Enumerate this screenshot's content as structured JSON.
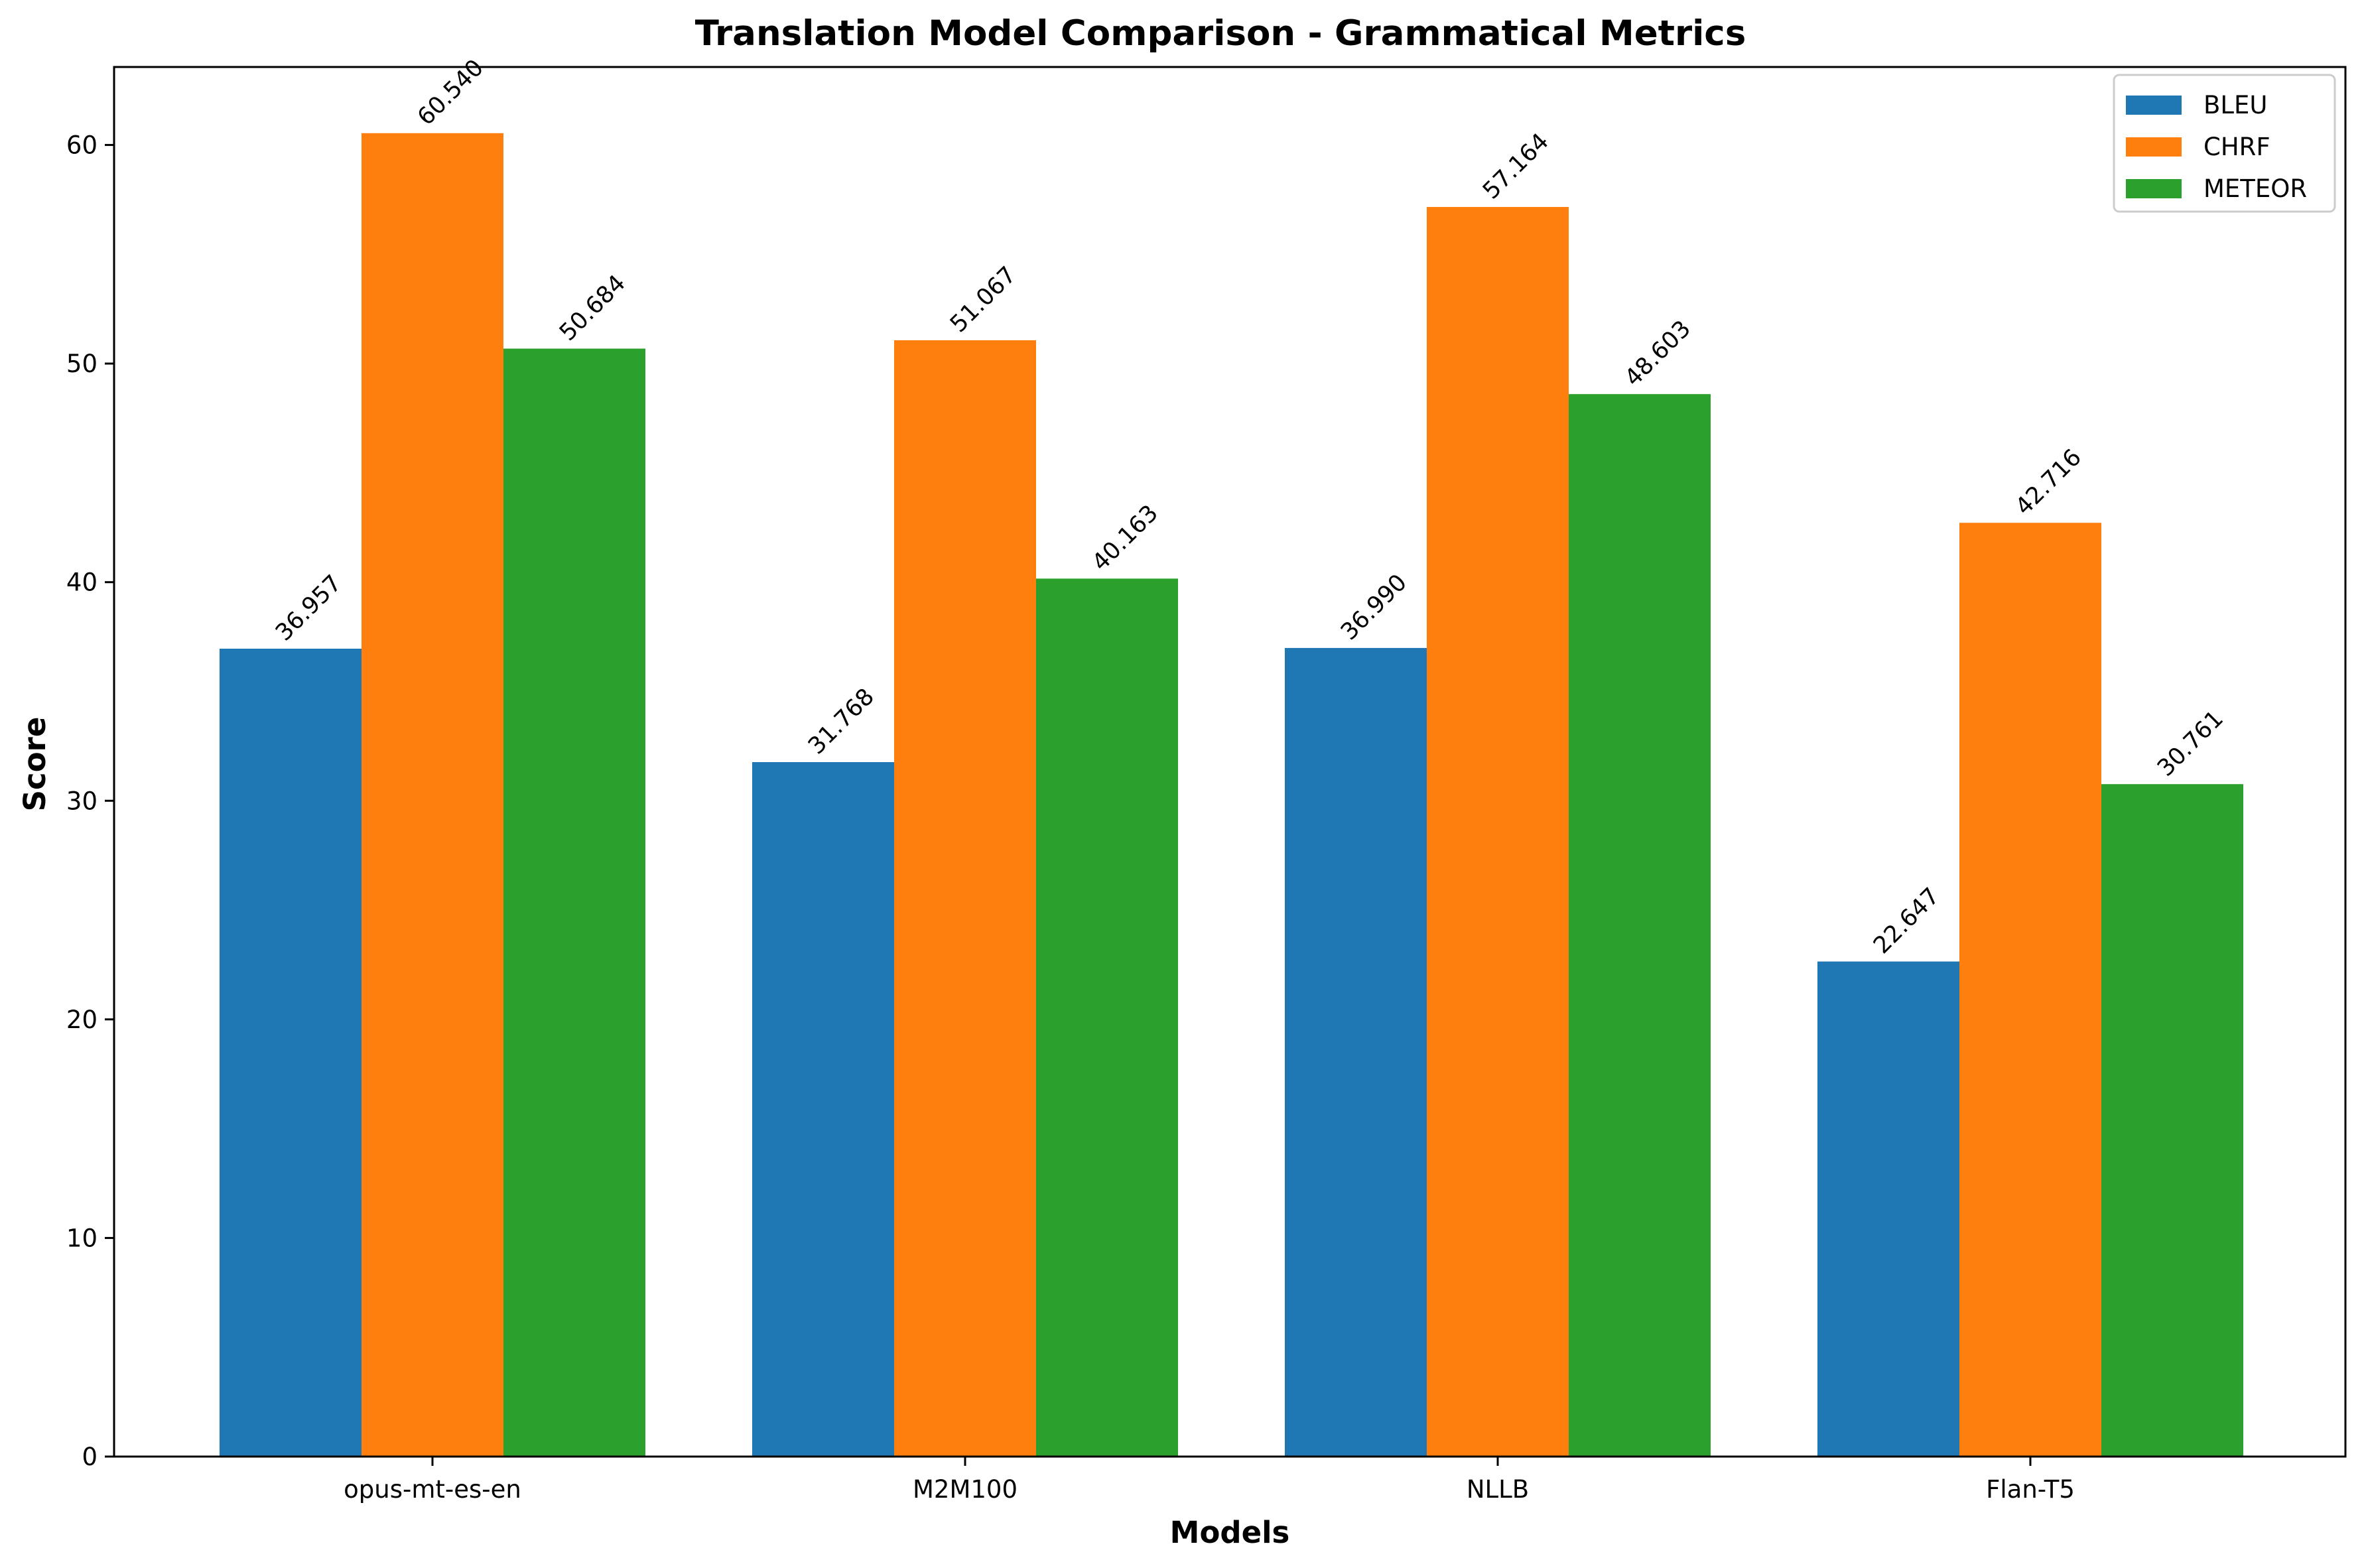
{
  "chart_data": {
    "type": "bar",
    "title": "Translation Model Comparison - Grammatical Metrics",
    "xlabel": "Models",
    "ylabel": "Score",
    "categories": [
      "opus-mt-es-en",
      "M2M100",
      "NLLB",
      "Flan-T5"
    ],
    "series": [
      {
        "name": "BLEU",
        "color": "#1f77b4",
        "values": [
          36.957,
          31.768,
          36.99,
          22.647
        ],
        "labels": [
          "36.957",
          "31.768",
          "36.990",
          "22.647"
        ]
      },
      {
        "name": "CHRF",
        "color": "#ff7f0e",
        "values": [
          60.54,
          51.067,
          57.164,
          42.716
        ],
        "labels": [
          "60.540",
          "51.067",
          "57.164",
          "42.716"
        ]
      },
      {
        "name": "METEOR",
        "color": "#2ca02c",
        "values": [
          50.684,
          40.163,
          48.603,
          30.761
        ],
        "labels": [
          "50.684",
          "40.163",
          "48.603",
          "30.761"
        ]
      }
    ],
    "ylim": [
      0,
      63.567
    ],
    "yticks": [
      "0",
      "10",
      "20",
      "30",
      "40",
      "50",
      "60"
    ],
    "grid": false,
    "legend_position": "top-right"
  }
}
